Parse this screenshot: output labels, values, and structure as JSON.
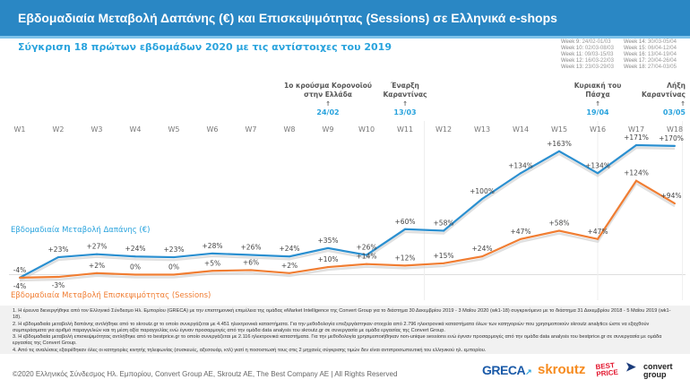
{
  "header": {
    "title": "Εβδομαδιαία Μεταβολή Δαπάνης (€) και Επισκεψιμότητας (Sessions) σε Ελληνικά e-shops",
    "subtitle": "Σύγκριση 18 πρώτων εβδομάδων 2020 με τις αντίστοιχες του 2019"
  },
  "week_legend": [
    {
      "w": "Week 9:",
      "d": "24/02-01/03"
    },
    {
      "w": "Week 14:",
      "d": "30/03-05/04"
    },
    {
      "w": "Week 10:",
      "d": "02/03-08/03"
    },
    {
      "w": "Week 15:",
      "d": "06/04-12/04"
    },
    {
      "w": "Week 11:",
      "d": "09/03-15/03"
    },
    {
      "w": "Week 16:",
      "d": "13/04-19/04"
    },
    {
      "w": "Week 12:",
      "d": "16/03-22/03"
    },
    {
      "w": "Week 17:",
      "d": "20/04-26/04"
    },
    {
      "w": "Week 13:",
      "d": "23/03-29/03"
    },
    {
      "w": "Week 18:",
      "d": "27/04-03/05"
    }
  ],
  "events": [
    {
      "week": "W9",
      "l1": "1ο κρούσμα Κορονοϊού",
      "l2": "στην Ελλάδα",
      "arrow": "↑",
      "date": "24/02"
    },
    {
      "week": "W11",
      "l1": "Έναρξη",
      "l2": "Καραντίνας",
      "arrow": "↑",
      "date": "13/03"
    },
    {
      "week": "W16",
      "l1": "Κυριακή του",
      "l2": "Πάσχα",
      "arrow": "↑",
      "date": "19/04"
    },
    {
      "week": "W18",
      "l1": "Λήξη",
      "l2": "Καραντίνας",
      "arrow": "↑",
      "date": "03/05"
    }
  ],
  "chart_data": {
    "type": "line",
    "categories": [
      "W1",
      "W2",
      "W3",
      "W4",
      "W5",
      "W6",
      "W7",
      "W8",
      "W9",
      "W10",
      "W11",
      "W12",
      "W13",
      "W14",
      "W15",
      "W16",
      "W17",
      "W18"
    ],
    "series": [
      {
        "name": "Εβδομαδιαία Μεταβολή Δαπάνης (€)",
        "color": "#2a8fd0",
        "values": [
          -4,
          23,
          27,
          24,
          23,
          28,
          26,
          24,
          35,
          26,
          60,
          58,
          100,
          134,
          163,
          134,
          171,
          170
        ],
        "labels": [
          "-4%",
          "+23%",
          "+27%",
          "+24%",
          "+23%",
          "+28%",
          "+26%",
          "+24%",
          "+35%",
          "+26%",
          "+60%",
          "+58%",
          "+100%",
          "+134%",
          "+163%",
          "+134%",
          "+171%",
          "+170%"
        ]
      },
      {
        "name": "Εβδομαδιαία Μεταβολή Επισκεψιμότητας (Sessions)",
        "color": "#f07d32",
        "values": [
          -4,
          -3,
          2,
          0,
          0,
          5,
          6,
          2,
          10,
          14,
          12,
          15,
          24,
          47,
          58,
          47,
          124,
          94
        ],
        "labels": [
          "-4%",
          "-3%",
          "+2%",
          "0%",
          "0%",
          "+5%",
          "+6%",
          "+2%",
          "+10%",
          "+14%",
          "+12%",
          "+15%",
          "+24%",
          "+47%",
          "+58%",
          "+47%",
          "+124%",
          "+94%"
        ]
      }
    ],
    "unit": "%"
  },
  "notes": [
    "1. Η έρευνα διενεργήθηκε από τον Ελληνικό Σύνδεσμο Ηλ. Εμπορίου (GRECA) με την επιστημονική επιμέλεια της ομάδας eMarket Intelligence της Convert Group για το διάστημα 30 Δεκεμβρίου 2019 - 3 Μαΐου 2020 (wk1-18) συγκρινόμενο με το διάστημα 31 Δεκεμβρίου 2018 - 5 Μαΐου 2019 (wk1-18).",
    "2. Η εβδομαδιαία μεταβολή δαπάνης αντλήθηκε από το skroutz.gr το οποίο συνεργάζεται με 4.451 ηλεκτρονικά καταστήματα. Για την μεθοδολογία επεξεργάστηκαν στοιχεία από 2.796 ηλεκτρονικά καταστήματα όλων των κατηγοριών που χρησιμοποιούν skroutz analytics ώστε να εξαχθούν συμπεράσματα για αριθμό παραγγελιών και τη μέση αξία παραγγελίας ενώ έγιναν προσαρμογές από την ομάδα data analysis του skroutz.gr σε συνεργασία με ομάδα εργασίας της Convert Group.",
    "3. Η εβδομαδιαία μεταβολή επισκεψιμότητας αντλήθηκε από το bestprice.gr το οποίο συνεργάζεται με 2.116 ηλεκτρονικά καταστήματα. Για την μεθοδολογία χρησιμοποιήθηκαν non-unique sessions ενώ έγιναν προσαρμογές από την ομάδα data analysis του bestprice.gr σε συνεργασία με ομάδα εργασίας της Convert Group.",
    "4. Από τις αναλύσεις εξαιρέθηκαν όλες οι κατηγορίες κινητής τηλεφωνίας (συσκευές, αξεσουάρ, κτλ) γιατί η ποσοστωσή τους στις 2 μηχανές σύγκρισης τιμών δεν είναι αντιπροσωπευτική του ελληνικού ηλ. εμπορίου."
  ],
  "footer": {
    "copyright": "©2020 Ελληνικός Σύνδεσμος Ηλ. Εμπορίου, Convert Group AE, Skroutz AE, The Best Company AE | All Rights Reserved"
  },
  "logos": [
    "GRECA",
    "skroutz",
    "BEST PRICE",
    "convert group"
  ]
}
